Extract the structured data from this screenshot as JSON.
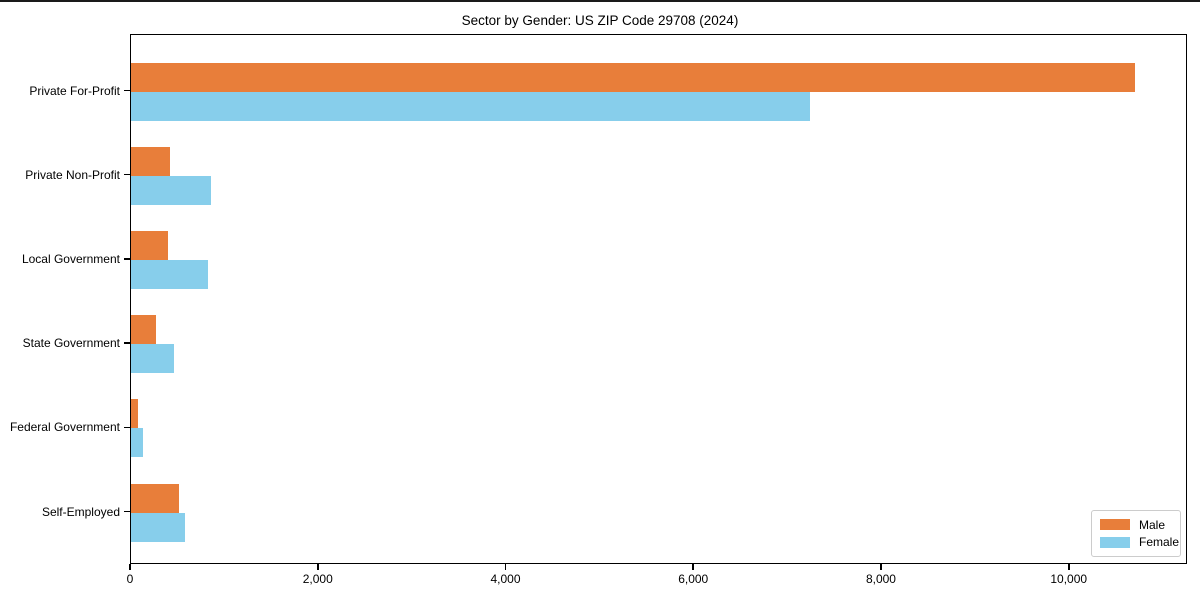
{
  "figure": {
    "title": "Sector by Gender: US ZIP Code 29708 (2024)"
  },
  "chart_data": {
    "type": "bar",
    "orientation": "horizontal",
    "title": "Sector by Gender: US ZIP Code 29708 (2024)",
    "categories": [
      "Private For-Profit",
      "Private Non-Profit",
      "Local Government",
      "State Government",
      "Federal Government",
      "Self-Employed"
    ],
    "series": [
      {
        "name": "Male",
        "color": "#E87E3A",
        "values": [
          10700,
          420,
          395,
          265,
          75,
          510
        ]
      },
      {
        "name": "Female",
        "color": "#87CEEB",
        "values": [
          7230,
          850,
          820,
          460,
          125,
          575
        ]
      }
    ],
    "xlabel": "",
    "ylabel": "",
    "xlim": [
      0,
      11260
    ],
    "xticks": [
      0,
      2000,
      4000,
      6000,
      8000,
      10000
    ],
    "xtick_labels": [
      "0",
      "2,000",
      "4,000",
      "6,000",
      "8,000",
      "10,000"
    ],
    "grid": false,
    "legend": {
      "position": "lower right",
      "entries": [
        "Male",
        "Female"
      ]
    }
  },
  "colors": {
    "male": "#E87E3A",
    "female": "#87CEEB",
    "axis": "#000000",
    "legend_border": "#cccccc",
    "background": "#ffffff"
  }
}
